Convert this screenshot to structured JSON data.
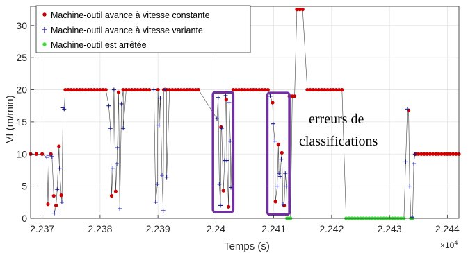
{
  "chart_data": {
    "type": "scatter",
    "title": "",
    "xlabel": "Temps (s)",
    "ylabel": "Vf (m/min)",
    "xlim": [
      22368,
      22442
    ],
    "ylim": [
      0,
      33
    ],
    "x_multiplier": "×10",
    "x_multiplier_exp": "4",
    "xticks": [
      {
        "value": 22370,
        "label": "2.237"
      },
      {
        "value": 22380,
        "label": "2.238"
      },
      {
        "value": 22390,
        "label": "2.239"
      },
      {
        "value": 22400,
        "label": "2.24"
      },
      {
        "value": 22410,
        "label": "2.241"
      },
      {
        "value": 22420,
        "label": "2.242"
      },
      {
        "value": 22430,
        "label": "2.243"
      },
      {
        "value": 22440,
        "label": "2.244"
      }
    ],
    "yticks": [
      {
        "value": 0,
        "label": "0"
      },
      {
        "value": 5,
        "label": "5"
      },
      {
        "value": 10,
        "label": "10"
      },
      {
        "value": 15,
        "label": "15"
      },
      {
        "value": 20,
        "label": "20"
      },
      {
        "value": 25,
        "label": "25"
      },
      {
        "value": 30,
        "label": "30"
      }
    ],
    "grid": true,
    "legend_position": "top-left",
    "colors": {
      "constante": "#cc0000",
      "variante": "#1a1a8c",
      "arretee": "#33dd33",
      "line": "#444444",
      "highlight": "#7030a0"
    },
    "series": [
      {
        "name": "Machine-outil avance à vitesse constante",
        "marker": "dot",
        "color": "#cc0000",
        "points": [
          [
            22368,
            10
          ],
          [
            22369,
            10
          ],
          [
            22370,
            10
          ],
          [
            22371.0,
            2.2
          ],
          [
            22371.5,
            10
          ],
          [
            22372.0,
            3.5
          ],
          [
            22372.4,
            2.0
          ],
          [
            22372.9,
            11.2
          ],
          [
            22373.3,
            3.6
          ],
          [
            22374,
            20
          ],
          [
            22374.5,
            20
          ],
          [
            22375,
            20
          ],
          [
            22375.5,
            20
          ],
          [
            22376,
            20
          ],
          [
            22376.5,
            20
          ],
          [
            22377,
            20
          ],
          [
            22377.5,
            20
          ],
          [
            22378,
            20
          ],
          [
            22378.5,
            20
          ],
          [
            22379,
            20
          ],
          [
            22379.5,
            20
          ],
          [
            22380,
            20
          ],
          [
            22380.5,
            20
          ],
          [
            22381,
            20
          ],
          [
            22382.0,
            3.5
          ],
          [
            22382.7,
            4.2
          ],
          [
            22383.2,
            19.6
          ],
          [
            22384,
            20
          ],
          [
            22384.5,
            20
          ],
          [
            22385,
            20
          ],
          [
            22385.5,
            20
          ],
          [
            22386,
            20
          ],
          [
            22386.5,
            20
          ],
          [
            22387,
            20
          ],
          [
            22387.5,
            20
          ],
          [
            22388,
            20
          ],
          [
            22388.5,
            20
          ],
          [
            22390.0,
            20
          ],
          [
            22391,
            20
          ],
          [
            22391.5,
            20
          ],
          [
            22392,
            20
          ],
          [
            22392.5,
            20
          ],
          [
            22393,
            20
          ],
          [
            22393.5,
            20
          ],
          [
            22394,
            20
          ],
          [
            22394.5,
            20
          ],
          [
            22395,
            20
          ],
          [
            22395.5,
            20
          ],
          [
            22396,
            20
          ],
          [
            22396.5,
            20
          ],
          [
            22397,
            20
          ],
          [
            22400.9,
            14.2
          ],
          [
            22401.3,
            4.3
          ],
          [
            22402.2,
            1.8
          ],
          [
            22401.8,
            18.5
          ],
          [
            22403,
            20
          ],
          [
            22403.5,
            20
          ],
          [
            22404,
            20
          ],
          [
            22404.5,
            20
          ],
          [
            22405,
            20
          ],
          [
            22405.5,
            20
          ],
          [
            22406,
            20
          ],
          [
            22406.5,
            20
          ],
          [
            22407,
            20
          ],
          [
            22407.5,
            20
          ],
          [
            22408,
            20
          ],
          [
            22408.5,
            20
          ],
          [
            22409,
            20
          ],
          [
            22409.8,
            18.0
          ],
          [
            22410.3,
            2.6
          ],
          [
            22410.8,
            11.5
          ],
          [
            22411.4,
            10.2
          ],
          [
            22411.8,
            2.0
          ],
          [
            22412.7,
            19
          ],
          [
            22413.2,
            19
          ],
          [
            22413.6,
            19
          ],
          [
            22414.0,
            32.5
          ],
          [
            22414.5,
            32.5
          ],
          [
            22415.0,
            32.5
          ],
          [
            22415.8,
            20
          ],
          [
            22416.3,
            20
          ],
          [
            22416.8,
            20
          ],
          [
            22417.3,
            20
          ],
          [
            22417.8,
            20
          ],
          [
            22418.3,
            20
          ],
          [
            22418.8,
            20
          ],
          [
            22419.3,
            20
          ],
          [
            22419.8,
            20
          ],
          [
            22420.3,
            20
          ],
          [
            22420.8,
            20
          ],
          [
            22421.3,
            20
          ],
          [
            22421.8,
            20
          ],
          [
            22433.3,
            16.8
          ],
          [
            22434.5,
            10
          ],
          [
            22435,
            10
          ],
          [
            22435.5,
            10
          ],
          [
            22436,
            10
          ],
          [
            22436.5,
            10
          ],
          [
            22437,
            10
          ],
          [
            22437.5,
            10
          ],
          [
            22438,
            10
          ],
          [
            22438.5,
            10
          ],
          [
            22439,
            10
          ],
          [
            22439.5,
            10
          ],
          [
            22440,
            10
          ],
          [
            22440.5,
            10
          ],
          [
            22441,
            10
          ],
          [
            22441.5,
            10
          ],
          [
            22442,
            10
          ]
        ]
      },
      {
        "name": "Machine-outil avance à vitesse variante",
        "marker": "plus",
        "color": "#1a1a8c",
        "points": [
          [
            22370.8,
            9.5
          ],
          [
            22371.2,
            9.8
          ],
          [
            22371.7,
            9.6
          ],
          [
            22372.1,
            0.8
          ],
          [
            22372.6,
            4.5
          ],
          [
            22373.0,
            7.8
          ],
          [
            22373.4,
            2.5
          ],
          [
            22373.6,
            17.2
          ],
          [
            22373.8,
            17.0
          ],
          [
            22381.5,
            17.5
          ],
          [
            22381.8,
            14.0
          ],
          [
            22382.2,
            7.8
          ],
          [
            22382.4,
            20.0
          ],
          [
            22382.9,
            8.5
          ],
          [
            22383.0,
            11.0
          ],
          [
            22383.4,
            1.5
          ],
          [
            22383.7,
            17.8
          ],
          [
            22384.0,
            14.0
          ],
          [
            22389.3,
            20.0
          ],
          [
            22389.6,
            2.5
          ],
          [
            22389.9,
            5.3
          ],
          [
            22390.2,
            14.5
          ],
          [
            22390.4,
            18.7
          ],
          [
            22390.7,
            6.7
          ],
          [
            22390.9,
            1.2
          ],
          [
            22391.2,
            20.0
          ],
          [
            22391.5,
            6.4
          ],
          [
            22400.2,
            15.5
          ],
          [
            22400.4,
            18.8
          ],
          [
            22400.6,
            5.3
          ],
          [
            22400.8,
            2.0
          ],
          [
            22401.0,
            14.0
          ],
          [
            22401.5,
            9.0
          ],
          [
            22401.7,
            19.1
          ],
          [
            22401.9,
            9.0
          ],
          [
            22402.3,
            18.0
          ],
          [
            22402.5,
            12.0
          ],
          [
            22402.6,
            4.8
          ],
          [
            22409.4,
            19.0
          ],
          [
            22409.9,
            14.7
          ],
          [
            22410.2,
            12.0
          ],
          [
            22410.6,
            5.0
          ],
          [
            22410.9,
            7.0
          ],
          [
            22411.1,
            6.5
          ],
          [
            22411.3,
            9.2
          ],
          [
            22411.6,
            2.2
          ],
          [
            22412.0,
            7.0
          ],
          [
            22412.2,
            5.0
          ],
          [
            22432.8,
            8.8
          ],
          [
            22433.1,
            17.0
          ],
          [
            22433.5,
            5.0
          ],
          [
            22433.9,
            0.2
          ],
          [
            22434.2,
            8.5
          ],
          [
            22434.4,
            10.0
          ]
        ]
      },
      {
        "name": "Machine-outil est arrêtée",
        "marker": "dot",
        "color": "#33dd33",
        "points": [
          [
            22412.3,
            0
          ],
          [
            22412.6,
            0
          ],
          [
            22412.9,
            0
          ],
          [
            22422.5,
            0
          ],
          [
            22423,
            0
          ],
          [
            22423.5,
            0
          ],
          [
            22424,
            0
          ],
          [
            22424.5,
            0
          ],
          [
            22425,
            0
          ],
          [
            22425.5,
            0
          ],
          [
            22426,
            0
          ],
          [
            22426.5,
            0
          ],
          [
            22427,
            0
          ],
          [
            22427.5,
            0
          ],
          [
            22428,
            0
          ],
          [
            22428.5,
            0
          ],
          [
            22429,
            0
          ],
          [
            22429.5,
            0
          ],
          [
            22430,
            0
          ],
          [
            22430.5,
            0
          ],
          [
            22431,
            0
          ],
          [
            22431.5,
            0
          ],
          [
            22432,
            0
          ],
          [
            22432.5,
            0
          ],
          [
            22433.7,
            0
          ],
          [
            22434.0,
            0
          ]
        ]
      }
    ],
    "highlight_boxes": [
      {
        "x": [
          22399.5,
          22403.0
        ],
        "y": [
          1.0,
          19.6
        ]
      },
      {
        "x": [
          22408.9,
          22412.7
        ],
        "y": [
          0.6,
          19.5
        ]
      }
    ],
    "annotation": {
      "line1": "erreurs de",
      "line2": "classifications"
    }
  }
}
